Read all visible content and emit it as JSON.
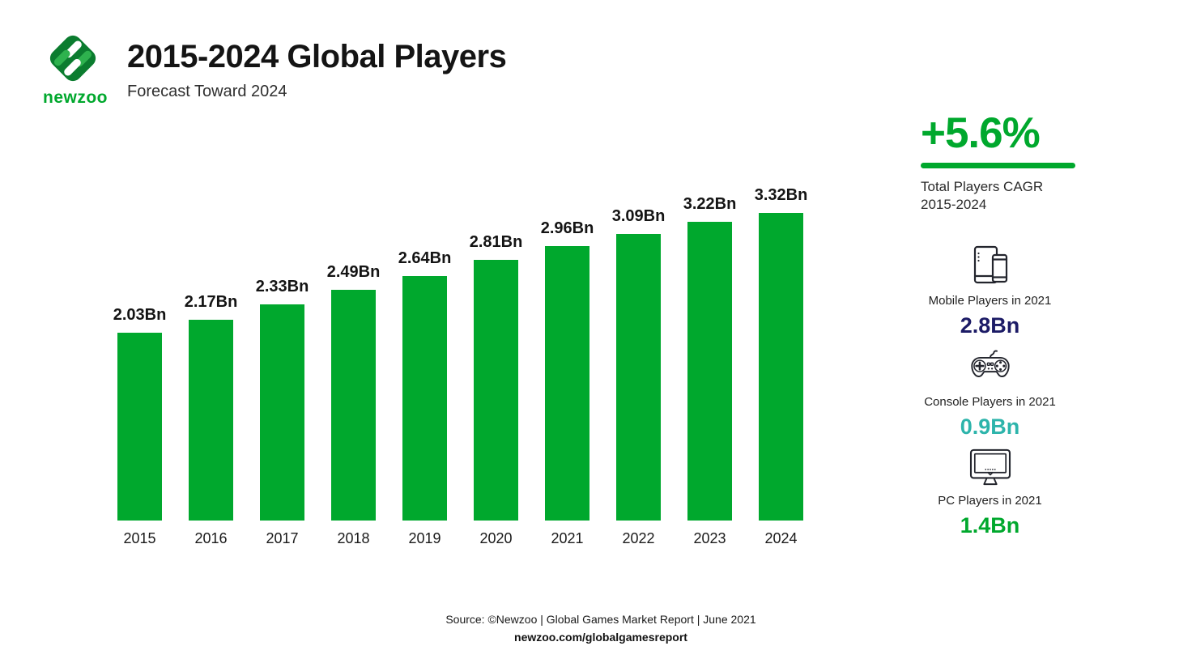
{
  "header": {
    "logo_text": "newzoo",
    "title": "2015-2024 Global Players",
    "subtitle": "Forecast Toward 2024"
  },
  "chart_data": {
    "type": "bar",
    "title": "2015-2024 Global Players",
    "subtitle": "Forecast Toward 2024",
    "categories": [
      "2015",
      "2016",
      "2017",
      "2018",
      "2019",
      "2020",
      "2021",
      "2022",
      "2023",
      "2024"
    ],
    "values": [
      2.03,
      2.17,
      2.33,
      2.49,
      2.64,
      2.81,
      2.96,
      3.09,
      3.22,
      3.32
    ],
    "value_labels": [
      "2.03Bn",
      "2.17Bn",
      "2.33Bn",
      "2.49Bn",
      "2.64Bn",
      "2.81Bn",
      "2.96Bn",
      "3.09Bn",
      "3.22Bn",
      "3.32Bn"
    ],
    "unit": "Bn",
    "xlabel": "",
    "ylabel": "",
    "ylim": [
      0,
      3.32
    ],
    "grid": false,
    "legend": false,
    "bar_color": "#00a82d"
  },
  "sidebar": {
    "cagr": {
      "value": "+5.6%",
      "label_line1": "Total Players CAGR",
      "label_line2": "2015-2024",
      "accent_color": "#00a82d"
    },
    "stats": [
      {
        "icon": "tablet-phone-icon",
        "label": "Mobile Players in 2021",
        "value": "2.8Bn",
        "color": "#1c1b66"
      },
      {
        "icon": "gamepad-icon",
        "label": "Console Players in 2021",
        "value": "0.9Bn",
        "color": "#2db4ab"
      },
      {
        "icon": "monitor-icon",
        "label": "PC Players in 2021",
        "value": "1.4Bn",
        "color": "#00a82d"
      }
    ]
  },
  "footer": {
    "source": "Source: ©Newzoo | Global Games Market Report | June 2021",
    "url": "newzoo.com/globalgamesreport"
  },
  "colors": {
    "brand_green": "#00a82d",
    "logo_dark_green": "#0b7c2f",
    "logo_mid_green": "#2eb24e",
    "navy": "#1c1b66",
    "teal": "#2db4ab",
    "icon_stroke": "#23252d"
  }
}
